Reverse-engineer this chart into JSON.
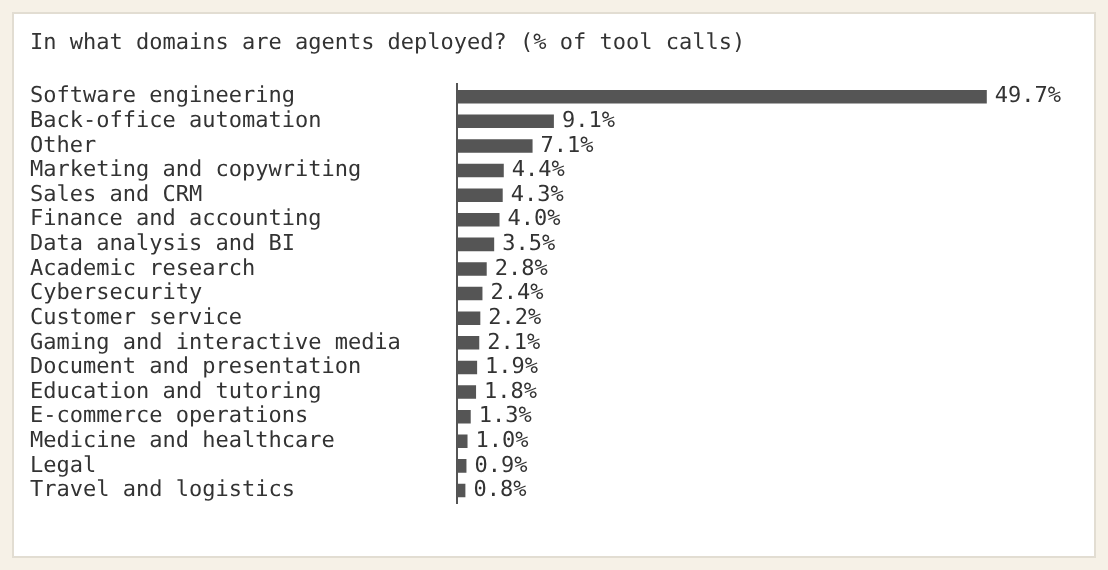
{
  "chart_data": {
    "type": "bar",
    "orientation": "horizontal",
    "title": "In what domains are agents deployed? (% of tool calls)",
    "categories": [
      "Software engineering",
      "Back-office automation",
      "Other",
      "Marketing and copywriting",
      "Sales and CRM",
      "Finance and accounting",
      "Data analysis and BI",
      "Academic research",
      "Cybersecurity",
      "Customer service",
      "Gaming and interactive media",
      "Document and presentation",
      "Education and tutoring",
      "E-commerce operations",
      "Medicine and healthcare",
      "Legal",
      "Travel and logistics"
    ],
    "values": [
      49.7,
      9.1,
      7.1,
      4.4,
      4.3,
      4.0,
      3.5,
      2.8,
      2.4,
      2.2,
      2.1,
      1.9,
      1.8,
      1.3,
      1.0,
      0.9,
      0.8
    ],
    "value_labels": [
      "49.7%",
      "9.1%",
      "7.1%",
      "4.4%",
      "4.3%",
      "4.0%",
      "3.5%",
      "2.8%",
      "2.4%",
      "2.2%",
      "2.1%",
      "1.9%",
      "1.8%",
      "1.3%",
      "1.0%",
      "0.9%",
      "0.8%"
    ],
    "color": "#555555",
    "grid": false,
    "legend": false,
    "tick_labels": "y"
  }
}
